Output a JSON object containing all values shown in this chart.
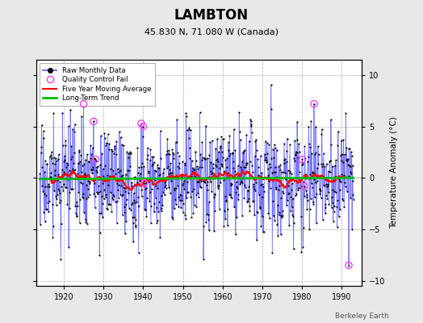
{
  "title": "LAMBTON",
  "subtitle": "45.830 N, 71.080 W (Canada)",
  "ylabel": "Temperature Anomaly (°C)",
  "credit": "Berkeley Earth",
  "xlim": [
    1913,
    1995
  ],
  "ylim": [
    -10.5,
    11.5
  ],
  "yticks": [
    -10,
    -5,
    0,
    5,
    10
  ],
  "xticks": [
    1920,
    1930,
    1940,
    1950,
    1960,
    1970,
    1980,
    1990
  ],
  "bg_color": "#e8e8e8",
  "plot_bg_color": "#ffffff",
  "raw_line_color": "#5555ff",
  "raw_dot_color": "#000000",
  "qc_fail_color": "#ff44ff",
  "moving_avg_color": "#ff0000",
  "trend_color": "#00bb00",
  "seed": 17,
  "n_years": 79,
  "start_year": 1914,
  "months_per_year": 12
}
